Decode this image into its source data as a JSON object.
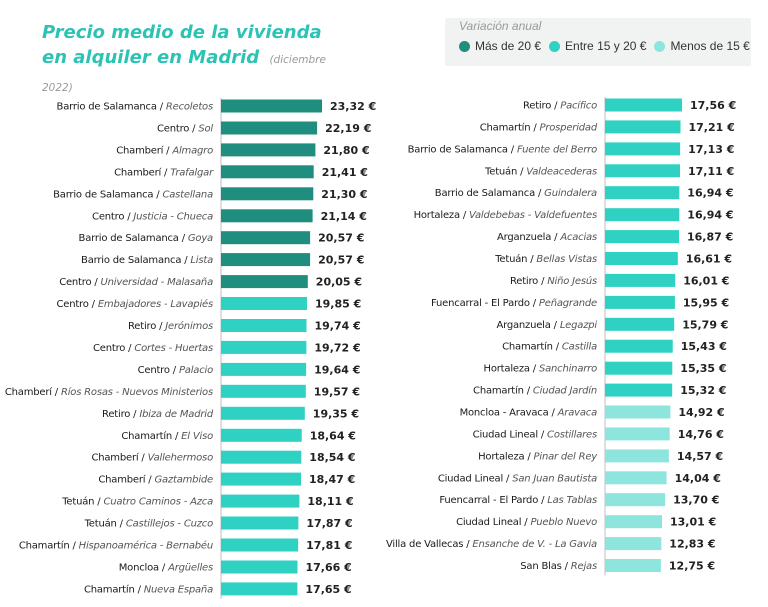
{
  "title": "Precio medio de la vivienda en alquiler en Madrid",
  "subtitle": "(diciembre 2022)",
  "legend": {
    "title": "Variación anual",
    "items": [
      {
        "label": "Más de 20 €",
        "color": "#1f8e7e"
      },
      {
        "label": "Entre 15 y 20 €",
        "color": "#2ed1c2"
      },
      {
        "label": "Menos de 15 €",
        "color": "#8ee5de"
      }
    ]
  },
  "chart_data": [
    {
      "type": "bar",
      "orientation": "horizontal",
      "value_unit": "€",
      "bars": [
        {
          "district": "Barrio de Salamanca",
          "neighborhood": "Recoletos",
          "value": 23.32,
          "label": "23,32 €",
          "group": 0
        },
        {
          "district": "Centro",
          "neighborhood": "Sol",
          "value": 22.19,
          "label": "22,19 €",
          "group": 0
        },
        {
          "district": "Chamberí",
          "neighborhood": "Almagro",
          "value": 21.8,
          "label": "21,80 €",
          "group": 0
        },
        {
          "district": "Chamberí",
          "neighborhood": "Trafalgar",
          "value": 21.41,
          "label": "21,41 €",
          "group": 0
        },
        {
          "district": "Barrio de Salamanca",
          "neighborhood": "Castellana",
          "value": 21.3,
          "label": "21,30 €",
          "group": 0
        },
        {
          "district": "Centro",
          "neighborhood": "Justicia - Chueca",
          "value": 21.14,
          "label": "21,14 €",
          "group": 0
        },
        {
          "district": "Barrio de Salamanca",
          "neighborhood": "Goya",
          "value": 20.57,
          "label": "20,57 €",
          "group": 0
        },
        {
          "district": "Barrio de Salamanca",
          "neighborhood": "Lista",
          "value": 20.57,
          "label": "20,57 €",
          "group": 0
        },
        {
          "district": "Centro",
          "neighborhood": "Universidad - Malasaña",
          "value": 20.05,
          "label": "20,05 €",
          "group": 0
        },
        {
          "district": "Centro",
          "neighborhood": "Embajadores - Lavapiés",
          "value": 19.85,
          "label": "19,85 €",
          "group": 1
        },
        {
          "district": "Retiro",
          "neighborhood": "Jerónimos",
          "value": 19.74,
          "label": "19,74 €",
          "group": 1
        },
        {
          "district": "Centro",
          "neighborhood": "Cortes - Huertas",
          "value": 19.72,
          "label": "19,72 €",
          "group": 1
        },
        {
          "district": "Centro",
          "neighborhood": "Palacio",
          "value": 19.64,
          "label": "19,64 €",
          "group": 1
        },
        {
          "district": "Chamberí",
          "neighborhood": "Ríos Rosas - Nuevos Ministerios",
          "value": 19.57,
          "label": "19,57 €",
          "group": 1
        },
        {
          "district": "Retiro",
          "neighborhood": "Ibiza de Madrid",
          "value": 19.35,
          "label": "19,35 €",
          "group": 1
        },
        {
          "district": "Chamartín",
          "neighborhood": "El Viso",
          "value": 18.64,
          "label": "18,64 €",
          "group": 1
        },
        {
          "district": "Chamberí",
          "neighborhood": "Vallehermoso",
          "value": 18.54,
          "label": "18,54 €",
          "group": 1
        },
        {
          "district": "Chamberí",
          "neighborhood": "Gaztambide",
          "value": 18.47,
          "label": "18,47 €",
          "group": 1
        },
        {
          "district": "Tetuán",
          "neighborhood": "Cuatro Caminos - Azca",
          "value": 18.11,
          "label": "18,11 €",
          "group": 1
        },
        {
          "district": "Tetuán",
          "neighborhood": "Castillejos - Cuzco",
          "value": 17.87,
          "label": "17,87 €",
          "group": 1
        },
        {
          "district": "Chamartín",
          "neighborhood": "Hispanoamérica - Bernabéu",
          "value": 17.81,
          "label": "17,81 €",
          "group": 1
        },
        {
          "district": "Moncloa",
          "neighborhood": "Argüelles",
          "value": 17.66,
          "label": "17,66 €",
          "group": 1
        },
        {
          "district": "Chamartín",
          "neighborhood": "Nueva España",
          "value": 17.65,
          "label": "17,65 €",
          "group": 1
        }
      ]
    },
    {
      "type": "bar",
      "orientation": "horizontal",
      "value_unit": "€",
      "bars": [
        {
          "district": "Retiro",
          "neighborhood": "Pacífico",
          "value": 17.56,
          "label": "17,56 €",
          "group": 1
        },
        {
          "district": "Chamartín",
          "neighborhood": "Prosperidad",
          "value": 17.21,
          "label": "17,21 €",
          "group": 1
        },
        {
          "district": "Barrio de Salamanca",
          "neighborhood": "Fuente del Berro",
          "value": 17.13,
          "label": "17,13 €",
          "group": 1
        },
        {
          "district": "Tetuán",
          "neighborhood": "Valdeacederas",
          "value": 17.11,
          "label": "17,11 €",
          "group": 1
        },
        {
          "district": "Barrio de Salamanca",
          "neighborhood": "Guindalera",
          "value": 16.94,
          "label": "16,94 €",
          "group": 1
        },
        {
          "district": "Hortaleza",
          "neighborhood": "Valdebebas - Valdefuentes",
          "value": 16.94,
          "label": "16,94 €",
          "group": 1
        },
        {
          "district": "Arganzuela",
          "neighborhood": "Acacias",
          "value": 16.87,
          "label": "16,87 €",
          "group": 1
        },
        {
          "district": "Tetuán",
          "neighborhood": "Bellas Vistas",
          "value": 16.61,
          "label": "16,61 €",
          "group": 1
        },
        {
          "district": "Retiro",
          "neighborhood": "Niño Jesús",
          "value": 16.01,
          "label": "16,01 €",
          "group": 1
        },
        {
          "district": "Fuencarral - El Pardo",
          "neighborhood": "Peñagrande",
          "value": 15.95,
          "label": "15,95 €",
          "group": 1
        },
        {
          "district": "Arganzuela",
          "neighborhood": "Legazpi",
          "value": 15.79,
          "label": "15,79 €",
          "group": 1
        },
        {
          "district": "Chamartín",
          "neighborhood": "Castilla",
          "value": 15.43,
          "label": "15,43 €",
          "group": 1
        },
        {
          "district": "Hortaleza",
          "neighborhood": "Sanchinarro",
          "value": 15.35,
          "label": "15,35 €",
          "group": 1
        },
        {
          "district": "Chamartín",
          "neighborhood": "Ciudad Jardín",
          "value": 15.32,
          "label": "15,32 €",
          "group": 1
        },
        {
          "district": "Moncloa - Aravaca",
          "neighborhood": "Aravaca",
          "value": 14.92,
          "label": "14,92 €",
          "group": 2
        },
        {
          "district": "Ciudad Lineal",
          "neighborhood": "Costillares",
          "value": 14.76,
          "label": "14,76 €",
          "group": 2
        },
        {
          "district": "Hortaleza",
          "neighborhood": "Pinar del Rey",
          "value": 14.57,
          "label": "14,57 €",
          "group": 2
        },
        {
          "district": "Ciudad Lineal",
          "neighborhood": "San Juan Bautista",
          "value": 14.04,
          "label": "14,04 €",
          "group": 2
        },
        {
          "district": "Fuencarral - El Pardo",
          "neighborhood": "Las Tablas",
          "value": 13.7,
          "label": "13,70 €",
          "group": 2
        },
        {
          "district": "Ciudad Lineal",
          "neighborhood": "Pueblo Nuevo",
          "value": 13.01,
          "label": "13,01 €",
          "group": 2
        },
        {
          "district": "Villa de Vallecas",
          "neighborhood": "Ensanche de V. - La Gavia",
          "value": 12.83,
          "label": "12,83 €",
          "group": 2
        },
        {
          "district": "San Blas",
          "neighborhood": "Rejas",
          "value": 12.75,
          "label": "12,75 €",
          "group": 2
        }
      ]
    }
  ]
}
